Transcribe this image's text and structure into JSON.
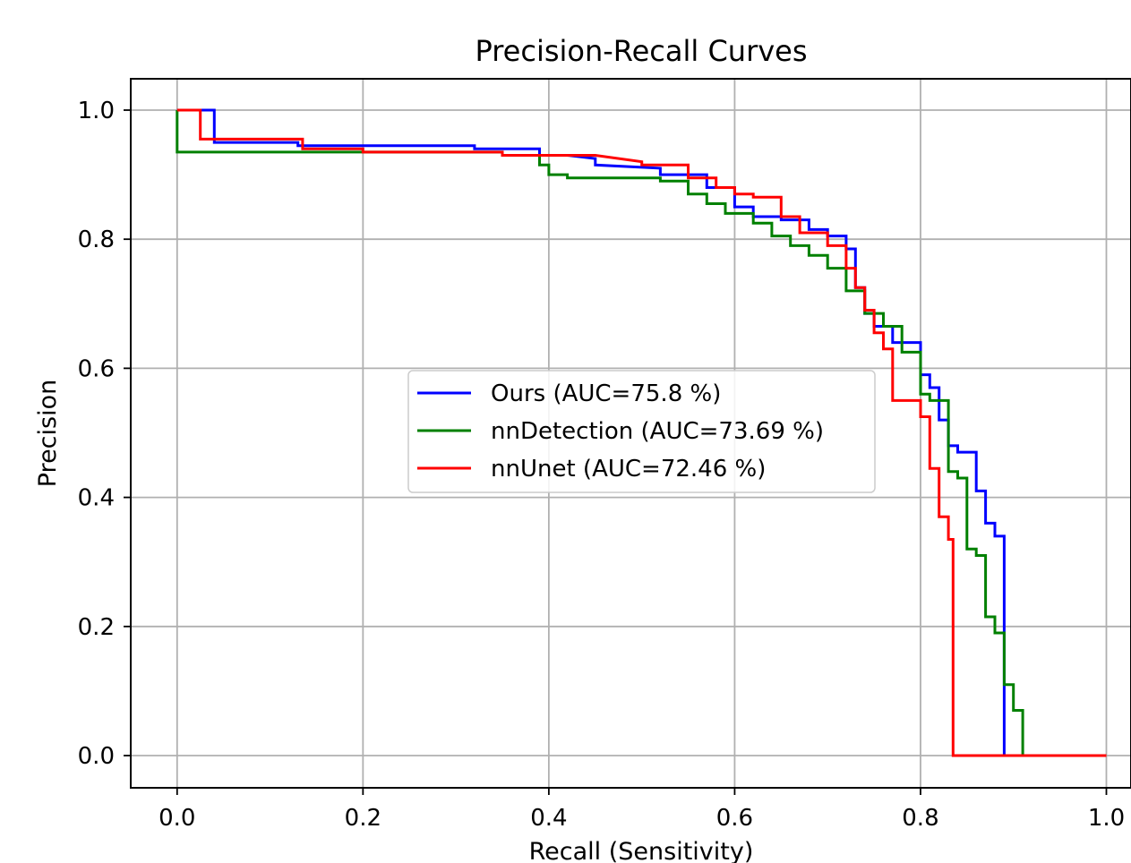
{
  "chart_data": {
    "type": "line",
    "title": "Precision-Recall Curves",
    "xlabel": "Recall (Sensitivity)",
    "ylabel": "Precision",
    "xlim": [
      -0.05,
      1.05
    ],
    "ylim": [
      -0.05,
      1.05
    ],
    "xticks": [
      "0.0",
      "0.2",
      "0.4",
      "0.6",
      "0.8",
      "1.0"
    ],
    "yticks": [
      "0.0",
      "0.2",
      "0.4",
      "0.6",
      "0.8",
      "1.0"
    ],
    "xtick_values": [
      0.0,
      0.2,
      0.4,
      0.6,
      0.8,
      1.0
    ],
    "ytick_values": [
      0.0,
      0.2,
      0.4,
      0.6,
      0.8,
      1.0
    ],
    "grid": true,
    "legend_position": "center",
    "series": [
      {
        "name": "Ours (AUC=75.8 %)",
        "color": "#0000ff",
        "x": [
          0.0,
          0.04,
          0.04,
          0.13,
          0.13,
          0.32,
          0.32,
          0.39,
          0.39,
          0.42,
          0.45,
          0.45,
          0.52,
          0.52,
          0.57,
          0.57,
          0.6,
          0.6,
          0.62,
          0.62,
          0.65,
          0.65,
          0.68,
          0.68,
          0.7,
          0.7,
          0.72,
          0.72,
          0.73,
          0.73,
          0.74,
          0.74,
          0.75,
          0.75,
          0.77,
          0.77,
          0.8,
          0.8,
          0.81,
          0.81,
          0.82,
          0.82,
          0.83,
          0.83,
          0.84,
          0.84,
          0.86,
          0.86,
          0.87,
          0.87,
          0.88,
          0.88,
          0.89,
          0.89
        ],
        "y": [
          1.0,
          1.0,
          0.95,
          0.95,
          0.945,
          0.945,
          0.94,
          0.94,
          0.93,
          0.93,
          0.925,
          0.915,
          0.91,
          0.9,
          0.9,
          0.88,
          0.88,
          0.85,
          0.85,
          0.835,
          0.835,
          0.83,
          0.83,
          0.815,
          0.815,
          0.805,
          0.805,
          0.785,
          0.785,
          0.725,
          0.725,
          0.685,
          0.685,
          0.665,
          0.665,
          0.64,
          0.64,
          0.59,
          0.59,
          0.57,
          0.57,
          0.52,
          0.52,
          0.48,
          0.48,
          0.47,
          0.47,
          0.41,
          0.41,
          0.36,
          0.36,
          0.34,
          0.34,
          0.0
        ]
      },
      {
        "name": "nnDetection (AUC=73.69 %)",
        "color": "#008000",
        "x": [
          0.0,
          0.0,
          0.35,
          0.35,
          0.39,
          0.39,
          0.4,
          0.4,
          0.42,
          0.42,
          0.52,
          0.52,
          0.55,
          0.55,
          0.57,
          0.57,
          0.59,
          0.59,
          0.62,
          0.62,
          0.64,
          0.64,
          0.66,
          0.66,
          0.68,
          0.68,
          0.7,
          0.7,
          0.72,
          0.72,
          0.74,
          0.74,
          0.76,
          0.76,
          0.78,
          0.78,
          0.8,
          0.8,
          0.81,
          0.81,
          0.83,
          0.83,
          0.84,
          0.84,
          0.85,
          0.85,
          0.86,
          0.86,
          0.87,
          0.87,
          0.88,
          0.88,
          0.89,
          0.89,
          0.9,
          0.9,
          0.91,
          0.91,
          1.0
        ],
        "y": [
          1.0,
          0.935,
          0.935,
          0.93,
          0.93,
          0.915,
          0.915,
          0.9,
          0.9,
          0.895,
          0.895,
          0.89,
          0.89,
          0.87,
          0.87,
          0.855,
          0.855,
          0.84,
          0.84,
          0.825,
          0.825,
          0.805,
          0.805,
          0.79,
          0.79,
          0.775,
          0.775,
          0.755,
          0.755,
          0.72,
          0.72,
          0.685,
          0.685,
          0.665,
          0.665,
          0.625,
          0.625,
          0.56,
          0.56,
          0.55,
          0.55,
          0.44,
          0.44,
          0.43,
          0.43,
          0.32,
          0.32,
          0.31,
          0.31,
          0.215,
          0.215,
          0.19,
          0.19,
          0.11,
          0.11,
          0.07,
          0.07,
          0.0,
          0.0
        ]
      },
      {
        "name": "nnUnet (AUC=72.46 %)",
        "color": "#ff0000",
        "x": [
          0.0,
          0.025,
          0.025,
          0.135,
          0.135,
          0.2,
          0.2,
          0.35,
          0.35,
          0.45,
          0.5,
          0.5,
          0.55,
          0.55,
          0.58,
          0.58,
          0.6,
          0.6,
          0.62,
          0.62,
          0.65,
          0.65,
          0.67,
          0.67,
          0.7,
          0.7,
          0.72,
          0.72,
          0.73,
          0.73,
          0.74,
          0.74,
          0.75,
          0.75,
          0.76,
          0.76,
          0.77,
          0.77,
          0.8,
          0.8,
          0.81,
          0.81,
          0.82,
          0.82,
          0.83,
          0.83,
          0.835,
          0.835,
          1.0
        ],
        "y": [
          1.0,
          1.0,
          0.955,
          0.955,
          0.94,
          0.94,
          0.935,
          0.935,
          0.93,
          0.93,
          0.92,
          0.915,
          0.915,
          0.895,
          0.895,
          0.88,
          0.88,
          0.87,
          0.87,
          0.865,
          0.865,
          0.835,
          0.835,
          0.81,
          0.81,
          0.79,
          0.79,
          0.755,
          0.755,
          0.725,
          0.725,
          0.69,
          0.69,
          0.655,
          0.655,
          0.63,
          0.63,
          0.55,
          0.55,
          0.525,
          0.525,
          0.445,
          0.445,
          0.37,
          0.37,
          0.335,
          0.335,
          0.0,
          0.0
        ]
      }
    ]
  }
}
